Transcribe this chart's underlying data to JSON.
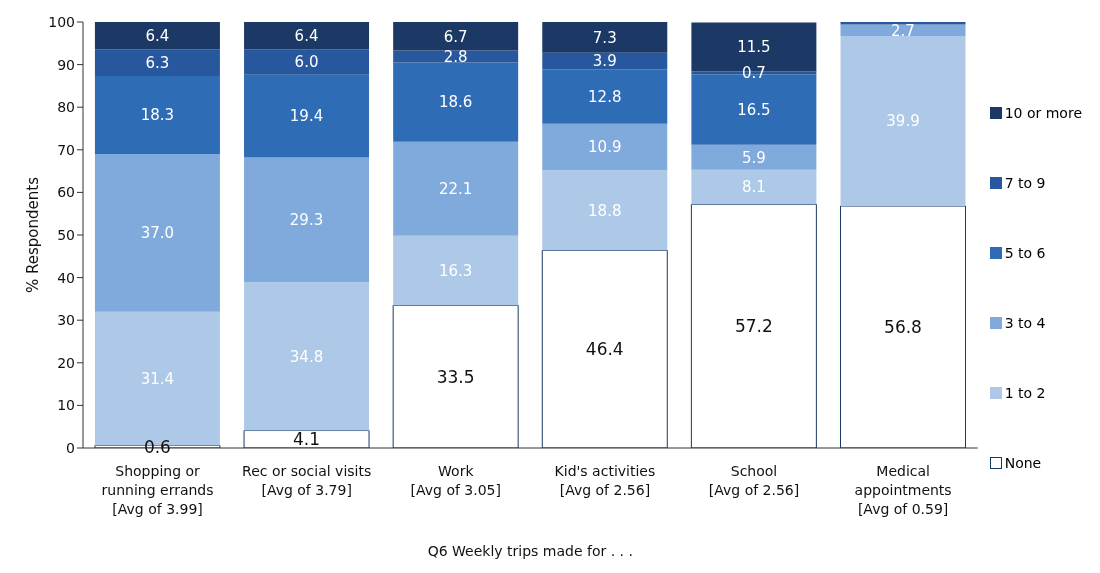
{
  "chart_data": {
    "type": "bar",
    "stacked": true,
    "xlabel": "Q6 Weekly trips made for . . .",
    "ylabel": "% Respondents",
    "categories": [
      "Shopping or\nrunning errands\n[Avg of 3.99]",
      "Rec or social visits\n[Avg of 3.79]",
      "Work\n[Avg of 3.05]",
      "Kid's activities\n[Avg of 2.56]",
      "School\n[Avg of 2.56]",
      "Medical\nappointments\n[Avg of 0.59]"
    ],
    "ylim": [
      0,
      100
    ],
    "yticks": [
      0,
      10,
      20,
      30,
      40,
      50,
      60,
      70,
      80,
      90,
      100
    ],
    "grid": false,
    "legend": "right",
    "series": [
      {
        "name": "None",
        "color": "#ffffff",
        "values": [
          0.6,
          4.1,
          33.5,
          46.4,
          57.2,
          56.8
        ],
        "value_labels": [
          "0.6",
          "4.1",
          "33.5",
          "46.4",
          "57.2",
          "56.8"
        ]
      },
      {
        "name": "1 to 2",
        "color": "#aec9e7",
        "values": [
          31.4,
          34.8,
          16.3,
          18.8,
          8.1,
          39.9
        ],
        "value_labels": [
          "31.4",
          "34.8",
          "16.3",
          "18.8",
          "8.1",
          "39.9"
        ]
      },
      {
        "name": "3 to 4",
        "color": "#80a9dc",
        "values": [
          37.0,
          29.3,
          22.1,
          10.9,
          5.9,
          2.7
        ],
        "value_labels": [
          "37.0",
          "29.3",
          "22.1",
          "10.9",
          "5.9",
          "2.7"
        ]
      },
      {
        "name": "5 to 6",
        "color": "#2f6cb6",
        "values": [
          18.3,
          19.4,
          18.6,
          12.8,
          16.5,
          null
        ],
        "value_labels": [
          "18.3",
          "19.4",
          "18.6",
          "12.8",
          "16.5",
          null
        ]
      },
      {
        "name": "7 to 9",
        "color": "#27579c",
        "values": [
          6.3,
          6.0,
          2.8,
          3.9,
          0.7,
          0.6
        ],
        "value_labels": [
          "6.3",
          "6.0",
          "2.8",
          "3.9",
          "0.7",
          null
        ]
      },
      {
        "name": "10 or more",
        "color": "#1c3966",
        "values": [
          6.4,
          6.4,
          6.7,
          7.3,
          11.5,
          null
        ],
        "value_labels": [
          "6.4",
          "6.4",
          "6.7",
          "7.3",
          "11.5",
          null
        ]
      }
    ]
  }
}
